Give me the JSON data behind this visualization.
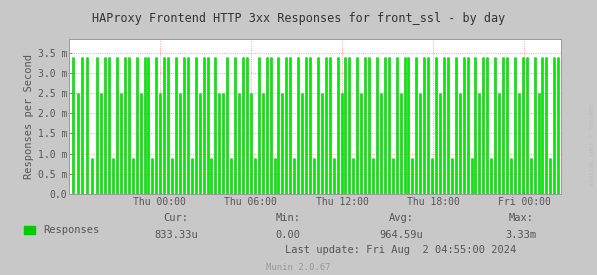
{
  "title": "HAProxy Frontend HTTP 3xx Responses for front_ssl - by day",
  "ylabel": "Responses per Second",
  "bg_color": "#C8C8C8",
  "plot_bg_color": "#FFFFFF",
  "grid_color": "#FF8080",
  "line_color": "#00EE00",
  "fill_color": "#00CC00",
  "border_color": "#999999",
  "text_color": "#555555",
  "title_color": "#333333",
  "ytick_labels": [
    "0.0",
    "0.5 m",
    "1.0 m",
    "1.5 m",
    "2.0 m",
    "2.5 m",
    "3.0 m",
    "3.5 m"
  ],
  "ytick_values": [
    0,
    0.0005,
    0.001,
    0.0015,
    0.002,
    0.0025,
    0.003,
    0.0035
  ],
  "ylim": [
    0,
    0.00385
  ],
  "xtick_labels": [
    "Thu 00:00",
    "Thu 06:00",
    "Thu 12:00",
    "Thu 18:00",
    "Fri 00:00"
  ],
  "xtick_positions": [
    0.185,
    0.37,
    0.555,
    0.74,
    0.925
  ],
  "legend_label": "Responses",
  "cur_label": "Cur:",
  "cur_val": "833.33u",
  "min_label": "Min:",
  "min_val": "0.00",
  "avg_label": "Avg:",
  "avg_val": "964.59u",
  "max_label": "Max:",
  "max_val": "3.33m",
  "last_update": "Last update: Fri Aug  2 04:55:00 2024",
  "munin_version": "Munin 2.0.67",
  "rrdtool_label": "RRDTOOL / TOBI OETIKER",
  "spike_positions": [
    0.008,
    0.018,
    0.028,
    0.038,
    0.048,
    0.058,
    0.065,
    0.073,
    0.082,
    0.09,
    0.098,
    0.106,
    0.114,
    0.122,
    0.13,
    0.138,
    0.146,
    0.154,
    0.162,
    0.17,
    0.178,
    0.186,
    0.194,
    0.202,
    0.21,
    0.218,
    0.226,
    0.234,
    0.242,
    0.25,
    0.258,
    0.266,
    0.274,
    0.282,
    0.29,
    0.298,
    0.306,
    0.314,
    0.322,
    0.33,
    0.338,
    0.346,
    0.354,
    0.362,
    0.37,
    0.378,
    0.386,
    0.394,
    0.402,
    0.41,
    0.418,
    0.426,
    0.434,
    0.442,
    0.45,
    0.458,
    0.466,
    0.474,
    0.482,
    0.49,
    0.498,
    0.506,
    0.514,
    0.522,
    0.53,
    0.538,
    0.546,
    0.554,
    0.562,
    0.57,
    0.578,
    0.586,
    0.594,
    0.602,
    0.61,
    0.618,
    0.626,
    0.634,
    0.642,
    0.65,
    0.658,
    0.666,
    0.674,
    0.682,
    0.69,
    0.698,
    0.706,
    0.714,
    0.722,
    0.73,
    0.738,
    0.746,
    0.754,
    0.762,
    0.77,
    0.778,
    0.786,
    0.794,
    0.802,
    0.81,
    0.818,
    0.826,
    0.834,
    0.842,
    0.85,
    0.858,
    0.866,
    0.874,
    0.882,
    0.89,
    0.898,
    0.906,
    0.914,
    0.922,
    0.93,
    0.938,
    0.946,
    0.954,
    0.962,
    0.97,
    0.978,
    0.986,
    0.994
  ],
  "spike_heights": [
    0.0034,
    0.0025,
    0.0034,
    0.0034,
    0.0009,
    0.0034,
    0.0025,
    0.0034,
    0.0034,
    0.0009,
    0.0034,
    0.0025,
    0.0034,
    0.0034,
    0.0009,
    0.0034,
    0.0025,
    0.0034,
    0.0034,
    0.0009,
    0.0034,
    0.0025,
    0.0034,
    0.0034,
    0.0009,
    0.0034,
    0.0025,
    0.0034,
    0.0034,
    0.0009,
    0.0034,
    0.0025,
    0.0034,
    0.0034,
    0.0009,
    0.0034,
    0.0025,
    0.0025,
    0.0034,
    0.0009,
    0.0034,
    0.0025,
    0.0034,
    0.0034,
    0.0025,
    0.0009,
    0.0034,
    0.0025,
    0.0034,
    0.0034,
    0.0009,
    0.0034,
    0.0025,
    0.0034,
    0.0034,
    0.0009,
    0.0034,
    0.0025,
    0.0034,
    0.0034,
    0.0009,
    0.0034,
    0.0025,
    0.0034,
    0.0034,
    0.0009,
    0.0034,
    0.0025,
    0.0034,
    0.0034,
    0.0009,
    0.0034,
    0.0025,
    0.0034,
    0.0034,
    0.0009,
    0.0034,
    0.0025,
    0.0034,
    0.0034,
    0.0009,
    0.0034,
    0.0025,
    0.0034,
    0.0034,
    0.0009,
    0.0034,
    0.0025,
    0.0034,
    0.0034,
    0.0009,
    0.0034,
    0.0025,
    0.0034,
    0.0034,
    0.0009,
    0.0034,
    0.0025,
    0.0034,
    0.0034,
    0.0009,
    0.0034,
    0.0025,
    0.0034,
    0.0034,
    0.0009,
    0.0034,
    0.0025,
    0.0034,
    0.0034,
    0.0009,
    0.0034,
    0.0025,
    0.0034,
    0.0034,
    0.0009,
    0.0034,
    0.0025,
    0.0034,
    0.0034,
    0.0009,
    0.0034,
    0.0034
  ]
}
